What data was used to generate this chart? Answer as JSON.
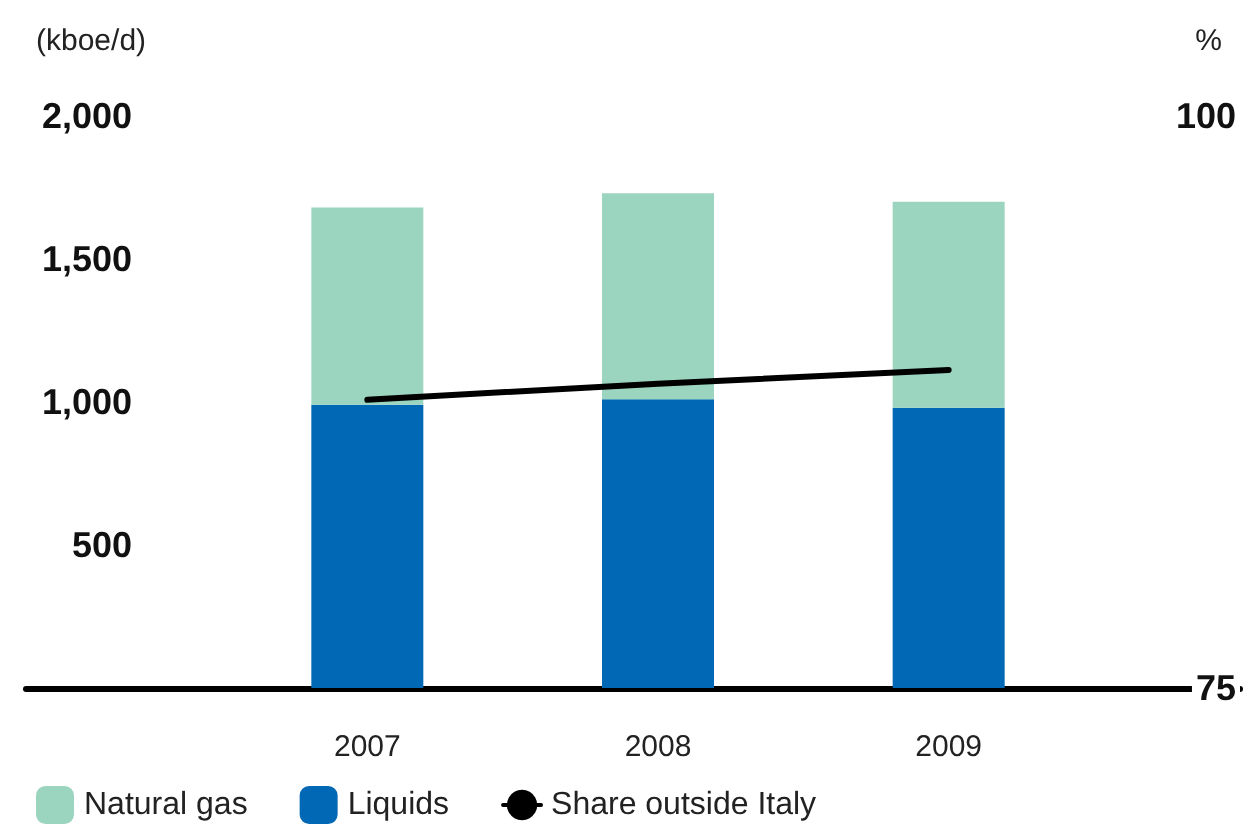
{
  "chart_data": {
    "type": "bar",
    "stacked": true,
    "ylabel": "(kboe/d)",
    "y2label": "%",
    "categories": [
      "2007",
      "2008",
      "2009"
    ],
    "series": [
      {
        "name": "Liquids",
        "color": "#0068b4",
        "values": [
          990,
          1010,
          980
        ]
      },
      {
        "name": "Natural gas",
        "color": "#9bd5bf",
        "values": [
          690,
          720,
          720
        ]
      },
      {
        "name": "Share outside Italy",
        "type": "line",
        "axis": "y2",
        "color": "#000000",
        "values": [
          87.6,
          88.3,
          88.9
        ],
        "marker": "none",
        "line_style": "solid"
      }
    ],
    "ylim": [
      0,
      2000
    ],
    "yticks": [
      {
        "value": 500,
        "label": "500"
      },
      {
        "value": 1000,
        "label": "1,000"
      },
      {
        "value": 1500,
        "label": "1,500"
      },
      {
        "value": 2000,
        "label": "2,000"
      }
    ],
    "y2lim": [
      75,
      100
    ],
    "y2ticks": [
      75,
      100
    ],
    "grid": false,
    "legend": "bottom left"
  }
}
